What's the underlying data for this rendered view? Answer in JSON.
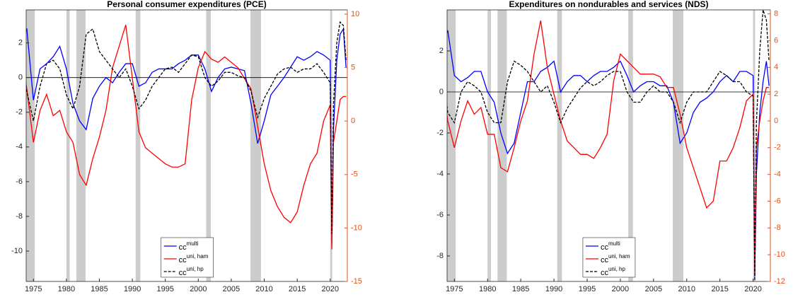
{
  "chart_data": [
    {
      "type": "line",
      "title": "Personal consumer expenditures (PCE)",
      "x": [
        1973,
        1974,
        1975,
        1976,
        1977,
        1978,
        1979,
        1980,
        1981,
        1982,
        1983,
        1984,
        1985,
        1986,
        1987,
        1988,
        1989,
        1990,
        1991,
        1992,
        1993,
        1994,
        1995,
        1996,
        1997,
        1998,
        1999,
        2000,
        2001,
        2002,
        2003,
        2004,
        2005,
        2006,
        2007,
        2008,
        2009,
        2010,
        2011,
        2012,
        2013,
        2014,
        2015,
        2016,
        2017,
        2018,
        2019,
        2020.0,
        2020.25,
        2020.5,
        2021,
        2021.5,
        2022,
        2022.4
      ],
      "series": [
        {
          "name": "cc",
          "superscript": "multi",
          "color": "#0000ff",
          "linestyle": "solid",
          "axis": "y",
          "values": [
            2.5,
            2.8,
            -1.3,
            0.5,
            0.8,
            1.2,
            1.8,
            0.5,
            -1.5,
            -2.5,
            -3.0,
            -1.2,
            -0.5,
            0.0,
            -0.3,
            0.3,
            0.8,
            0.8,
            -0.5,
            -0.3,
            0.3,
            0.5,
            0.5,
            0.5,
            0.8,
            1.0,
            1.3,
            1.3,
            0.5,
            -0.8,
            0.0,
            0.5,
            0.6,
            0.5,
            0.4,
            -1.5,
            -3.8,
            -2.5,
            -1.0,
            -0.5,
            0.0,
            0.6,
            1.2,
            1.0,
            1.2,
            1.5,
            1.3,
            1.0,
            -9.6,
            -3.0,
            1.0,
            2.5,
            2.8,
            0.6
          ]
        },
        {
          "name": "cc",
          "superscript": "uni, ham",
          "color": "#ff0000",
          "linestyle": "solid",
          "axis": "y2",
          "values": [
            7,
            3,
            -2,
            1,
            2.5,
            0.5,
            1,
            -1,
            -2,
            -5,
            -6,
            -3.5,
            -1.5,
            1,
            5,
            7,
            9,
            4,
            -1,
            -2.5,
            -3,
            -3.5,
            -4,
            -4.3,
            -4.3,
            -4,
            2,
            5,
            6.5,
            5.8,
            5.5,
            6,
            5.5,
            5,
            4,
            3,
            -0.5,
            -4,
            -6.5,
            -8,
            -9,
            -9.5,
            -8.5,
            -6,
            -4,
            -3,
            0,
            1.5,
            -12,
            -2,
            0,
            2,
            2.3,
            2.3
          ]
        },
        {
          "name": "cc",
          "superscript": "uni, hp",
          "color": "#000000",
          "linestyle": "dashed",
          "axis": "y",
          "values": [
            1.5,
            -0.8,
            -2.5,
            -0.5,
            0.8,
            1.0,
            0.5,
            -1.0,
            -1.8,
            -0.5,
            2.5,
            2.8,
            1.5,
            1.0,
            0.5,
            0.0,
            0.5,
            -0.5,
            -1.8,
            -1.3,
            -0.5,
            0.0,
            0.5,
            0.6,
            0.3,
            0.8,
            1.3,
            1.2,
            0.0,
            -0.5,
            -0.2,
            0.3,
            0.3,
            0.1,
            0.0,
            -0.8,
            -2.3,
            -1.2,
            -0.5,
            0.2,
            0.5,
            0.6,
            0.3,
            0.5,
            0.5,
            0.8,
            0.3,
            -0.3,
            -9.0,
            -1.5,
            2.0,
            3.2,
            3.0,
            1.0
          ]
        }
      ],
      "shaded_periods": [
        [
          1973.9,
          1975.2
        ],
        [
          1980.0,
          1980.5
        ],
        [
          1981.5,
          1982.9
        ],
        [
          1990.5,
          1991.2
        ],
        [
          2001.2,
          2001.9
        ],
        [
          2007.9,
          2009.5
        ],
        [
          2020.0,
          2020.3
        ]
      ],
      "reference_line": 0,
      "xlim": [
        1973.9,
        2022.6
      ],
      "xticks": [
        1975,
        1980,
        1985,
        1990,
        1995,
        2000,
        2005,
        2010,
        2015,
        2020
      ],
      "ylim": [
        -11.75,
        3.9
      ],
      "yticks": [
        -10,
        -8,
        -6,
        -4,
        -2,
        0,
        2
      ],
      "y2lim": [
        -15,
        10.4
      ],
      "y2ticks": [
        -15,
        -10,
        -5,
        0,
        5,
        10
      ],
      "y2color": "#d95319"
    },
    {
      "type": "line",
      "title": "Expenditures on nondurables and services (NDS)",
      "x": [
        1973,
        1974,
        1975,
        1976,
        1977,
        1978,
        1979,
        1980,
        1981,
        1982,
        1983,
        1984,
        1985,
        1986,
        1987,
        1988,
        1989,
        1990,
        1991,
        1992,
        1993,
        1994,
        1995,
        1996,
        1997,
        1998,
        1999,
        2000,
        2001,
        2002,
        2003,
        2004,
        2005,
        2006,
        2007,
        2008,
        2009,
        2010,
        2011,
        2012,
        2013,
        2014,
        2015,
        2016,
        2017,
        2018,
        2019,
        2020.0,
        2020.25,
        2020.5,
        2021,
        2021.5,
        2022,
        2022.4
      ],
      "series": [
        {
          "name": "cc",
          "superscript": "multi",
          "color": "#0000ff",
          "linestyle": "solid",
          "axis": "y",
          "values": [
            2.0,
            3.0,
            0.8,
            0.5,
            0.7,
            1.0,
            1.0,
            0.0,
            -0.5,
            -2.0,
            -3.0,
            -2.5,
            -1.0,
            0.5,
            0.5,
            1.0,
            1.2,
            1.5,
            0.0,
            0.5,
            0.8,
            0.8,
            0.5,
            0.8,
            1.0,
            1.0,
            1.2,
            1.5,
            0.8,
            0.0,
            0.3,
            0.5,
            0.5,
            0.3,
            0.3,
            -0.5,
            -2.5,
            -2.0,
            -1.0,
            -0.5,
            -0.3,
            0.0,
            0.5,
            0.8,
            0.5,
            1.0,
            1.0,
            0.8,
            -9.0,
            -4.0,
            -1.0,
            0.5,
            1.5,
            0.3
          ]
        },
        {
          "name": "cc",
          "superscript": "uni, ham",
          "color": "#ff0000",
          "linestyle": "solid",
          "axis": "y2",
          "values": [
            4,
            0,
            -2,
            0,
            1.5,
            0.5,
            1,
            -1,
            -1,
            -3.5,
            -3.8,
            -2,
            0,
            1.5,
            5,
            7.5,
            4,
            2,
            0,
            -1.5,
            -2,
            -2.5,
            -2.5,
            -2.8,
            -2,
            -1,
            3,
            5,
            4.5,
            4,
            3.5,
            3.5,
            3.5,
            3.3,
            2.5,
            2.5,
            0.5,
            -2,
            -3.5,
            -5,
            -6.5,
            -6,
            -3,
            -3,
            -2,
            -0.5,
            1.5,
            2,
            -11.5,
            -2,
            0,
            1.5,
            2.5,
            2.5
          ]
        },
        {
          "name": "cc",
          "superscript": "uni, hp",
          "color": "#000000",
          "linestyle": "dashed",
          "axis": "y",
          "values": [
            2.0,
            -1.0,
            -1.5,
            0.0,
            0.5,
            0.3,
            0.0,
            -1.0,
            -1.5,
            -1.5,
            0.5,
            1.5,
            1.3,
            1.0,
            0.5,
            0.0,
            0.3,
            -0.5,
            -1.5,
            -0.8,
            -0.3,
            0.2,
            0.5,
            0.3,
            0.5,
            0.8,
            1.0,
            1.0,
            0.0,
            -0.5,
            -0.5,
            0.0,
            0.3,
            0.0,
            0.0,
            -0.5,
            -1.5,
            -0.5,
            0.0,
            0.0,
            0.0,
            0.5,
            1.0,
            0.8,
            0.5,
            0.5,
            0.0,
            -0.2,
            -9.2,
            -1.5,
            2.0,
            4.0,
            3.5,
            1.5
          ]
        }
      ],
      "shaded_periods": [
        [
          1973.9,
          1975.2
        ],
        [
          1980.0,
          1980.5
        ],
        [
          1981.5,
          1982.9
        ],
        [
          1990.5,
          1991.2
        ],
        [
          2001.2,
          2001.9
        ],
        [
          2007.9,
          2009.5
        ],
        [
          2020.0,
          2020.3
        ]
      ],
      "reference_line": 0,
      "xlim": [
        1973.9,
        2022.6
      ],
      "xticks": [
        1975,
        1980,
        1985,
        1990,
        1995,
        2000,
        2005,
        2010,
        2015,
        2020
      ],
      "ylim": [
        -9.24,
        4.0
      ],
      "yticks": [
        -8,
        -6,
        -4,
        -2,
        0,
        2
      ],
      "y2lim": [
        -12,
        8.3
      ],
      "y2ticks": [
        -12,
        -10,
        -8,
        -6,
        -4,
        -2,
        0,
        2,
        4,
        6,
        8
      ],
      "y2color": "#d95319"
    }
  ]
}
